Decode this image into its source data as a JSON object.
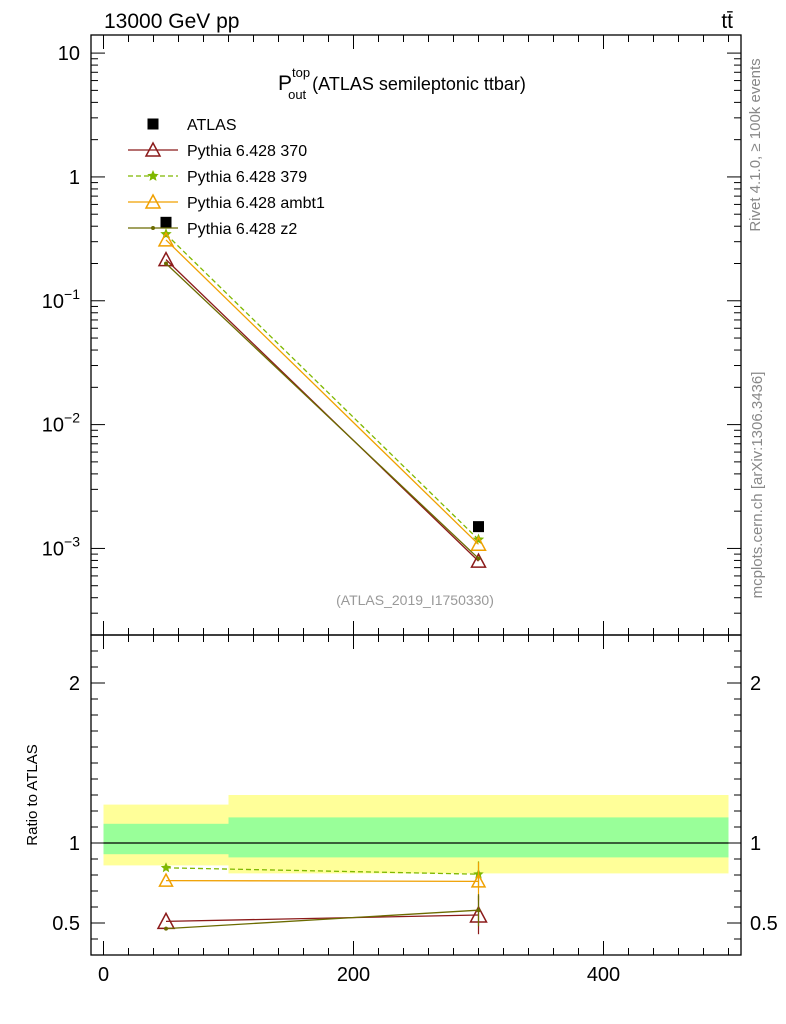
{
  "header": {
    "energy_label": "13000 GeV pp",
    "process_label": "tt̄"
  },
  "side_labels": {
    "rivet": "Rivet 4.1.0, ≥ 100k events",
    "mcplots": "mcplots.cern.ch [arXiv:1306.3436]"
  },
  "chart_data": [
    {
      "type": "line",
      "panel": "main",
      "title": {
        "base": "P",
        "superscript": "top",
        "subscript": "out",
        "rest": "(ATLAS semileptonic ttbar)"
      },
      "analysis_id": "(ATLAS_2019_I1750330)",
      "yscale": "log",
      "ylim": [
        0.0002,
        14
      ],
      "xlim": [
        -10,
        510
      ],
      "ytick_labels": [
        {
          "value": 10,
          "base": "10",
          "exp": ""
        },
        {
          "value": 1,
          "base": "1",
          "exp": ""
        },
        {
          "value": 0.1,
          "base": "10",
          "exp": "−1"
        },
        {
          "value": 0.01,
          "base": "10",
          "exp": "−2"
        },
        {
          "value": 0.001,
          "base": "10",
          "exp": "−3"
        }
      ],
      "legend_position": "top-left",
      "series": [
        {
          "name": "ATLAS",
          "color": "#000000",
          "marker": "square",
          "x": [
            50,
            300
          ],
          "values": [
            0.43,
            0.0015
          ]
        },
        {
          "name": "Pythia 6.428 370",
          "color": "#8b1a1a",
          "marker": "triangle-open",
          "dash": "",
          "x": [
            50,
            300
          ],
          "values": [
            0.215,
            0.00079
          ]
        },
        {
          "name": "Pythia 6.428 379",
          "color": "#7fb800",
          "marker": "star",
          "dash": "5,3",
          "x": [
            50,
            300
          ],
          "values": [
            0.345,
            0.00118
          ]
        },
        {
          "name": "Pythia 6.428 ambt1",
          "color": "#f0a000",
          "marker": "triangle-open",
          "dash": "",
          "x": [
            50,
            300
          ],
          "values": [
            0.31,
            0.00108
          ]
        },
        {
          "name": "Pythia 6.428 z2",
          "color": "#6b6b00",
          "marker": "dot",
          "dash": "",
          "x": [
            50,
            300
          ],
          "values": [
            0.2,
            0.00083
          ]
        }
      ]
    },
    {
      "type": "line",
      "panel": "ratio",
      "ylabel": "Ratio to ATLAS",
      "ylim": [
        0.3,
        2.3
      ],
      "xlim": [
        -10,
        510
      ],
      "yticks": [
        0.5,
        1,
        2
      ],
      "ytick_labels": [
        "0.5",
        "1",
        "2"
      ],
      "xticks": [
        0,
        200,
        400
      ],
      "xtick_labels": [
        "0",
        "200",
        "400"
      ],
      "bands": [
        {
          "x0": 0,
          "x1": 100,
          "stat_low": 0.93,
          "stat_high": 1.12,
          "total_low": 0.86,
          "total_high": 1.24
        },
        {
          "x0": 100,
          "x1": 500,
          "stat_low": 0.91,
          "stat_high": 1.16,
          "total_low": 0.81,
          "total_high": 1.3
        }
      ],
      "band_colors": {
        "stat": "#99ff99",
        "total": "#ffff99"
      },
      "series": [
        {
          "name": "Pythia 6.428 370",
          "color": "#8b1a1a",
          "marker": "triangle-open",
          "dash": "",
          "x": [
            50,
            300
          ],
          "values": [
            0.51,
            0.55
          ],
          "err": [
            0,
            0.12
          ]
        },
        {
          "name": "Pythia 6.428 379",
          "color": "#7fb800",
          "marker": "star",
          "dash": "5,3",
          "x": [
            50,
            300
          ],
          "values": [
            0.845,
            0.805
          ],
          "err": [
            0,
            0.08
          ]
        },
        {
          "name": "Pythia 6.428 ambt1",
          "color": "#f0a000",
          "marker": "triangle-open",
          "dash": "",
          "x": [
            50,
            300
          ],
          "values": [
            0.765,
            0.76
          ],
          "err": [
            0,
            0.12
          ]
        },
        {
          "name": "Pythia 6.428 z2",
          "color": "#6b6b00",
          "marker": "dot",
          "dash": "",
          "x": [
            50,
            300
          ],
          "values": [
            0.465,
            0.58
          ],
          "err": [
            0,
            0.1
          ]
        }
      ]
    }
  ]
}
